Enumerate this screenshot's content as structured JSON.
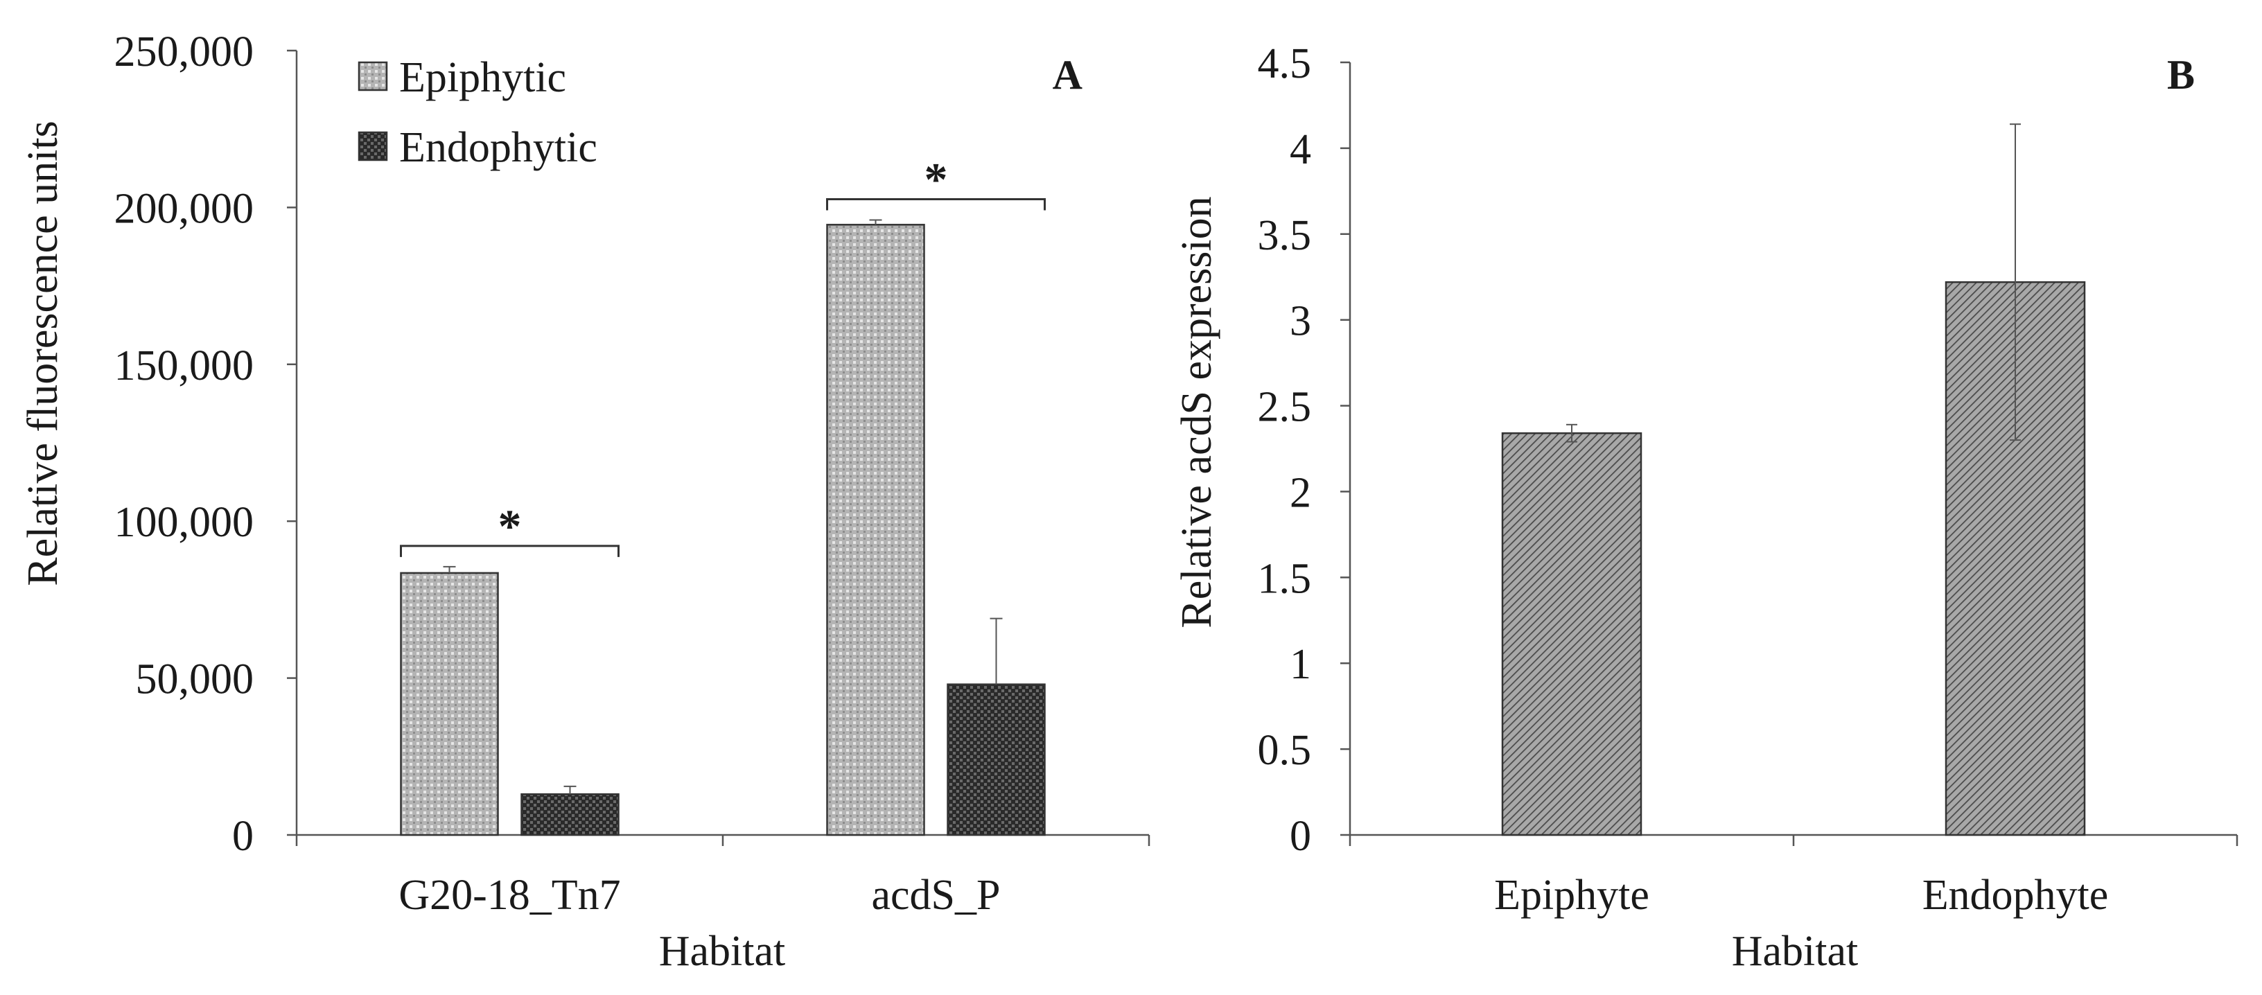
{
  "chart_data": [
    {
      "panel": "A",
      "type": "bar",
      "ylabel": "Relative fluorescence units",
      "xlabel": "Habitat",
      "ylim": [
        0,
        250000
      ],
      "yticks": [
        0,
        50000,
        100000,
        150000,
        200000,
        250000
      ],
      "ytick_labels": [
        "0",
        "50,000",
        "100,000",
        "150,000",
        "200,000",
        "250,000"
      ],
      "categories": [
        "G20-18_Tn7",
        "acdS_P"
      ],
      "series": [
        {
          "name": "Epiphytic",
          "pattern": "dotted-grid",
          "values": [
            83500,
            194500
          ],
          "errors": [
            2000,
            1500
          ]
        },
        {
          "name": "Endophytic",
          "pattern": "dark-checker",
          "values": [
            13000,
            48000
          ],
          "errors": [
            2500,
            21000
          ]
        }
      ],
      "significance": [
        {
          "category": "G20-18_Tn7",
          "label": "*"
        },
        {
          "category": "acdS_P",
          "label": "*"
        }
      ],
      "legend": [
        "Epiphytic",
        "Endophytic"
      ],
      "legend_position": "top-left"
    },
    {
      "panel": "B",
      "type": "bar",
      "ylabel": "Relative acdS expression",
      "xlabel": "Habitat",
      "ylim": [
        0,
        4.5
      ],
      "yticks": [
        0,
        0.5,
        1,
        1.5,
        2,
        2.5,
        3,
        3.5,
        4,
        4.5
      ],
      "ytick_labels": [
        "0",
        "0.5",
        "1",
        "1.5",
        "2",
        "2.5",
        "3",
        "3.5",
        "4",
        "4.5"
      ],
      "categories": [
        "Epiphyte",
        "Endophyte"
      ],
      "values": [
        2.34,
        3.22
      ],
      "errors": [
        0.05,
        0.92
      ],
      "pattern": "diagonal-hatch"
    }
  ]
}
